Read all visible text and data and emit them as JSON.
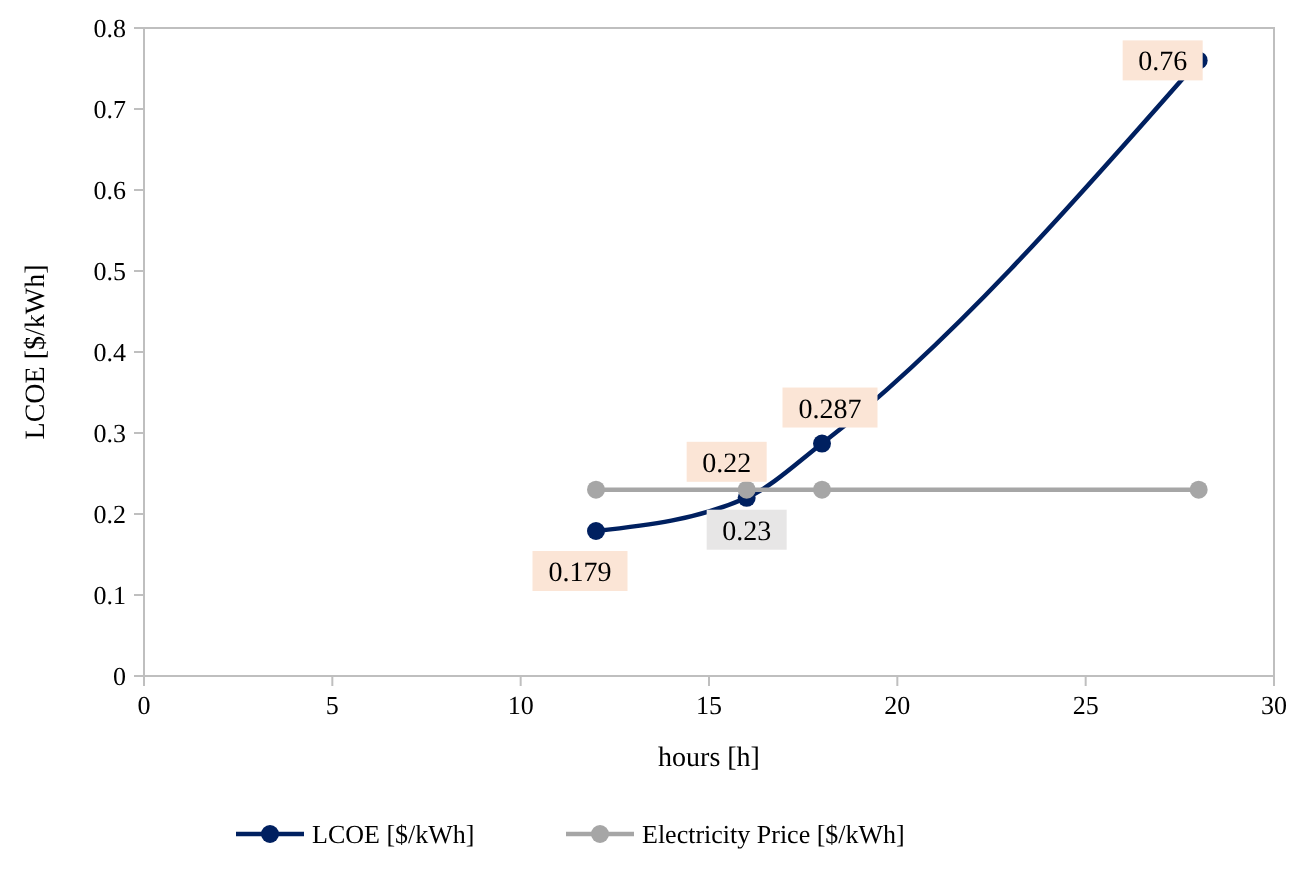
{
  "chart_data": {
    "type": "line",
    "xlabel": "hours [h]",
    "ylabel": "LCOE [$/kWh]",
    "x": [
      12,
      16,
      18,
      28
    ],
    "series": [
      {
        "name": "LCOE [$/kWh]",
        "color": "#002060",
        "values": [
          0.179,
          0.22,
          0.287,
          0.76
        ],
        "value_labels": [
          "0.179",
          "0.22",
          "0.287",
          "0.76"
        ]
      },
      {
        "name": "Electricity Price [$/kWh]",
        "color": "#a6a6a6",
        "values": [
          0.23,
          0.23,
          0.23,
          0.23
        ],
        "value_labels": [
          null,
          "0.23",
          null,
          null
        ]
      }
    ],
    "xlim": [
      0,
      30
    ],
    "xticks": [
      0,
      5,
      10,
      15,
      20,
      25,
      30
    ],
    "ylim": [
      0,
      0.8
    ],
    "yticks": [
      0,
      0.1,
      0.2,
      0.3,
      0.4,
      0.5,
      0.6,
      0.7,
      0.8
    ],
    "marker": "circle",
    "legend": "bottom",
    "grid": false
  }
}
